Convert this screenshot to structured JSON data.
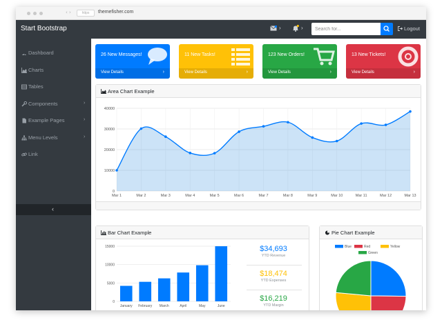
{
  "browser": {
    "url_badge": "https",
    "url": "themefisher.com"
  },
  "navbar": {
    "brand": "Start Bootstrap",
    "search_placeholder": "Search for...",
    "logout": "Logout",
    "icons": [
      "envelope-icon",
      "bell-icon",
      "search-icon",
      "logout-icon"
    ]
  },
  "sidebar": {
    "items": [
      {
        "label": "Dashboard",
        "icon": "dashboard-icon",
        "has_submenu": false
      },
      {
        "label": "Charts",
        "icon": "area-chart-icon",
        "has_submenu": false
      },
      {
        "label": "Tables",
        "icon": "table-icon",
        "has_submenu": false
      },
      {
        "label": "Components",
        "icon": "wrench-icon",
        "has_submenu": true
      },
      {
        "label": "Example Pages",
        "icon": "file-icon",
        "has_submenu": true
      },
      {
        "label": "Menu Levels",
        "icon": "sitemap-icon",
        "has_submenu": true
      },
      {
        "label": "Link",
        "icon": "link-icon",
        "has_submenu": false
      }
    ],
    "collapse_glyph": "‹"
  },
  "stat_cards": [
    {
      "title": "26 New Messages!",
      "link": "View Details",
      "color": "#007bff",
      "icon": "comment-icon"
    },
    {
      "title": "11 New Tasks!",
      "link": "View Details",
      "color": "#ffc107",
      "icon": "list-icon"
    },
    {
      "title": "123 New Orders!",
      "link": "View Details",
      "color": "#28a745",
      "icon": "cart-icon"
    },
    {
      "title": "13 New Tickets!",
      "link": "View Details",
      "color": "#dc3545",
      "icon": "life-ring-icon"
    }
  ],
  "area_card": {
    "title": "Area Chart Example"
  },
  "bar_card": {
    "title": "Bar Chart Example",
    "stats": [
      {
        "value": "$34,693",
        "label": "YTD Revenue",
        "color": "#007bff"
      },
      {
        "value": "$18,474",
        "label": "YTD Expenses",
        "color": "#ffc107"
      },
      {
        "value": "$16,219",
        "label": "YTD Margin",
        "color": "#28a745"
      }
    ]
  },
  "pie_card": {
    "title": "Pie Chart Example"
  },
  "chart_data": [
    {
      "type": "area",
      "categories": [
        "Mar 1",
        "Mar 2",
        "Mar 3",
        "Mar 4",
        "Mar 5",
        "Mar 6",
        "Mar 7",
        "Mar 8",
        "Mar 9",
        "Mar 10",
        "Mar 11",
        "Mar 12",
        "Mar 13"
      ],
      "values": [
        10000,
        30160,
        26260,
        18390,
        18290,
        28680,
        31270,
        33250,
        25850,
        24160,
        32610,
        31980,
        38450
      ],
      "ylim": [
        0,
        40000
      ],
      "yticks": [
        0,
        10000,
        20000,
        30000,
        40000
      ],
      "grid": true,
      "color": "#007bff",
      "fill": "rgba(2,117,216,0.2)"
    },
    {
      "type": "bar",
      "categories": [
        "January",
        "February",
        "March",
        "April",
        "May",
        "June"
      ],
      "values": [
        4215,
        5312,
        6251,
        7841,
        9821,
        14984
      ],
      "ylim": [
        0,
        15000
      ],
      "yticks": [
        0,
        5000,
        10000,
        15000
      ],
      "color": "#007bff"
    },
    {
      "type": "pie",
      "legend_position": "top",
      "slices": [
        {
          "name": "Blue",
          "value": 25.2,
          "color": "#007bff"
        },
        {
          "name": "Red",
          "value": 24.8,
          "color": "#dc3545"
        },
        {
          "name": "Yellow",
          "value": 26.5,
          "color": "#ffc107"
        },
        {
          "name": "Green",
          "value": 23.5,
          "color": "#28a745"
        }
      ]
    }
  ]
}
